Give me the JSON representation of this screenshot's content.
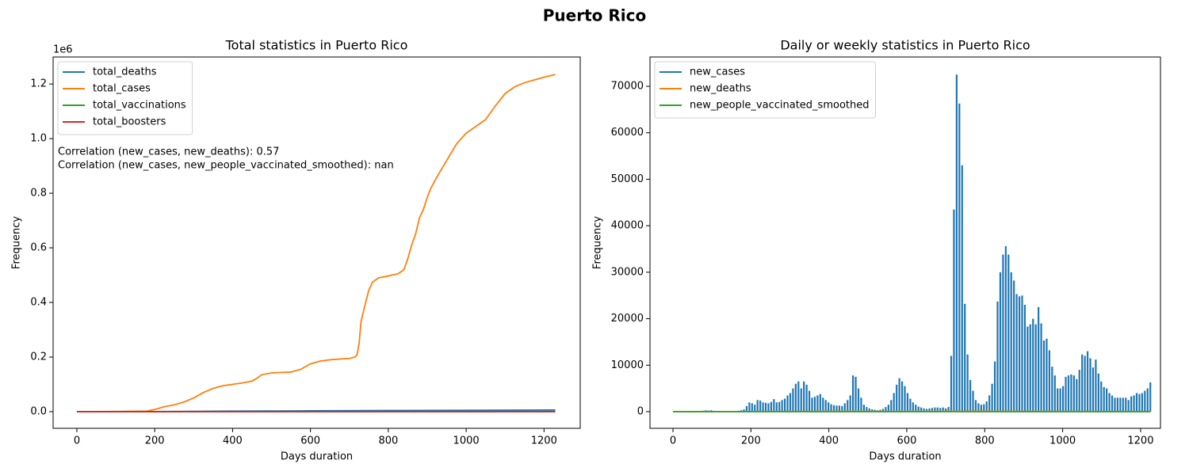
{
  "title": "Puerto Rico",
  "chart_data": [
    {
      "type": "line",
      "title": "Total statistics in Puerto Rico",
      "xlabel": "Days duration",
      "ylabel": "Frequency",
      "offset_label": "1e6",
      "xlim": [
        -61,
        1293
      ],
      "ylim": [
        -0.061,
        1.299
      ],
      "xticks": [
        0,
        200,
        400,
        600,
        800,
        1000,
        1200
      ],
      "yticks": [
        {
          "value": 0,
          "label": "0.0"
        },
        0.2,
        0.4,
        0.6,
        0.8,
        {
          "value": 1,
          "label": "1.0"
        },
        1.2
      ],
      "legend": "upper left",
      "annotations": [
        "Correlation (new_cases, new_deaths): 0.57",
        "Correlation (new_cases, new_people_vaccinated_smoothed): nan"
      ],
      "series": [
        {
          "name": "total_deaths",
          "color": "#1f77b4",
          "x": [
            0,
            200,
            400,
            600,
            800,
            1000,
            1229
          ],
          "values": [
            0,
            0.0002,
            0.002,
            0.003,
            0.004,
            0.005,
            0.0058
          ]
        },
        {
          "name": "total_cases",
          "color": "#ff7f0e",
          "x": [
            0,
            100,
            180,
            200,
            225,
            250,
            275,
            300,
            325,
            350,
            375,
            400,
            425,
            450,
            460,
            475,
            500,
            550,
            575,
            600,
            625,
            650,
            700,
            715,
            720,
            725,
            730,
            740,
            750,
            760,
            775,
            800,
            825,
            840,
            850,
            860,
            870,
            880,
            890,
            900,
            910,
            925,
            950,
            975,
            1000,
            1025,
            1050,
            1075,
            1100,
            1125,
            1150,
            1175,
            1200,
            1229
          ],
          "values": [
            0,
            0.0005,
            0.002,
            0.008,
            0.018,
            0.025,
            0.035,
            0.05,
            0.07,
            0.085,
            0.095,
            0.1,
            0.105,
            0.112,
            0.12,
            0.135,
            0.142,
            0.145,
            0.155,
            0.175,
            0.185,
            0.19,
            0.195,
            0.2,
            0.21,
            0.25,
            0.33,
            0.39,
            0.445,
            0.475,
            0.49,
            0.497,
            0.505,
            0.52,
            0.56,
            0.61,
            0.65,
            0.71,
            0.74,
            0.785,
            0.82,
            0.86,
            0.92,
            0.98,
            1.02,
            1.045,
            1.07,
            1.12,
            1.165,
            1.19,
            1.205,
            1.215,
            1.225,
            1.235
          ]
        },
        {
          "name": "total_vaccinations",
          "color": "#2ca02c",
          "x": [
            0,
            200,
            400,
            600,
            800,
            1000,
            1229
          ],
          "values": [
            0,
            0,
            0,
            0,
            0,
            0,
            0
          ]
        },
        {
          "name": "total_boosters",
          "color": "#d62728",
          "x": [
            0,
            200,
            400,
            600,
            800,
            1000,
            1229
          ],
          "values": [
            0,
            0,
            0,
            0,
            0,
            0,
            0
          ]
        }
      ]
    },
    {
      "type": "line",
      "title": "Daily or weekly statistics in Puerto Rico",
      "xlabel": "Days duration",
      "ylabel": "Frequency",
      "xlim": [
        -59,
        1251
      ],
      "ylim": [
        -3577,
        76300
      ],
      "xticks": [
        0,
        200,
        400,
        600,
        800,
        1000,
        1200
      ],
      "yticks": [
        0,
        10000,
        20000,
        30000,
        40000,
        50000,
        60000,
        70000
      ],
      "legend": "upper left",
      "series": [
        {
          "name": "new_cases",
          "color": "#1f77b4",
          "mark": "stem",
          "x": [
            0,
            7,
            14,
            21,
            28,
            35,
            42,
            49,
            56,
            63,
            70,
            77,
            84,
            91,
            98,
            105,
            112,
            119,
            126,
            133,
            140,
            147,
            154,
            161,
            168,
            175,
            182,
            189,
            196,
            203,
            210,
            217,
            224,
            231,
            238,
            245,
            252,
            259,
            266,
            273,
            280,
            287,
            294,
            301,
            308,
            315,
            322,
            329,
            336,
            343,
            350,
            357,
            364,
            371,
            378,
            385,
            392,
            399,
            406,
            413,
            420,
            427,
            434,
            441,
            448,
            455,
            462,
            469,
            476,
            483,
            490,
            497,
            504,
            511,
            518,
            525,
            532,
            539,
            546,
            553,
            560,
            567,
            574,
            581,
            588,
            595,
            602,
            609,
            616,
            623,
            630,
            637,
            644,
            651,
            658,
            665,
            672,
            679,
            686,
            693,
            700,
            707,
            714,
            721,
            728,
            735,
            742,
            749,
            756,
            763,
            770,
            777,
            784,
            791,
            798,
            805,
            812,
            819,
            826,
            833,
            840,
            847,
            854,
            861,
            868,
            875,
            882,
            889,
            896,
            903,
            910,
            917,
            924,
            931,
            938,
            945,
            952,
            959,
            966,
            973,
            980,
            987,
            994,
            1001,
            1008,
            1015,
            1022,
            1029,
            1036,
            1043,
            1050,
            1057,
            1064,
            1071,
            1078,
            1085,
            1092,
            1099,
            1106,
            1113,
            1120,
            1127,
            1134,
            1141,
            1148,
            1155,
            1162,
            1169,
            1176,
            1183,
            1190,
            1197,
            1204,
            1211,
            1218,
            1225
          ],
          "values": [
            0,
            0,
            0,
            0,
            0,
            0,
            0,
            0,
            0,
            0,
            0,
            200,
            300,
            250,
            300,
            200,
            150,
            150,
            150,
            100,
            100,
            100,
            150,
            150,
            200,
            300,
            500,
            1200,
            2000,
            1800,
            1500,
            2500,
            2400,
            2000,
            1900,
            1800,
            2100,
            2700,
            2000,
            2100,
            2500,
            2800,
            3500,
            4000,
            5000,
            6000,
            6500,
            5000,
            6500,
            5800,
            4500,
            3000,
            3200,
            3500,
            3800,
            3000,
            2500,
            2000,
            1600,
            1400,
            1300,
            1300,
            1200,
            1800,
            2500,
            3500,
            7800,
            7500,
            5000,
            3000,
            1500,
            1000,
            700,
            500,
            400,
            300,
            400,
            600,
            1000,
            1500,
            2500,
            4000,
            5800,
            7200,
            6500,
            5500,
            4000,
            2800,
            2000,
            1500,
            1100,
            900,
            700,
            600,
            700,
            800,
            900,
            900,
            800,
            900,
            700,
            1000,
            12000,
            43500,
            72500,
            66300,
            53000,
            23200,
            12300,
            6800,
            4500,
            2500,
            1800,
            1500,
            1600,
            2200,
            3500,
            6000,
            10800,
            23700,
            30000,
            33800,
            35600,
            33800,
            30000,
            28200,
            25300,
            24800,
            25000,
            23000,
            18300,
            18800,
            20000,
            18800,
            22500,
            19000,
            15300,
            15700,
            13200,
            9700,
            7800,
            5000,
            5000,
            5500,
            7500,
            7800,
            8000,
            7800,
            7000,
            9000,
            12300,
            12000,
            13000,
            11500,
            9500,
            11200,
            8200,
            6500,
            5300,
            5000,
            4000,
            3500,
            3000,
            3000,
            3000,
            3000,
            3000,
            2500,
            3300,
            3500,
            4000,
            3800,
            4000,
            4500,
            5000,
            6300
          ]
        },
        {
          "name": "new_deaths",
          "color": "#ff7f0e",
          "x": [
            0,
            200,
            400,
            600,
            800,
            1000,
            1225
          ],
          "values": [
            0,
            20,
            60,
            40,
            80,
            30,
            10
          ]
        },
        {
          "name": "new_people_vaccinated_smoothed",
          "color": "#2ca02c",
          "x": [
            0,
            200,
            400,
            600,
            800,
            1000,
            1225
          ],
          "values": [
            0,
            0,
            0,
            0,
            0,
            0,
            0
          ]
        }
      ]
    }
  ]
}
